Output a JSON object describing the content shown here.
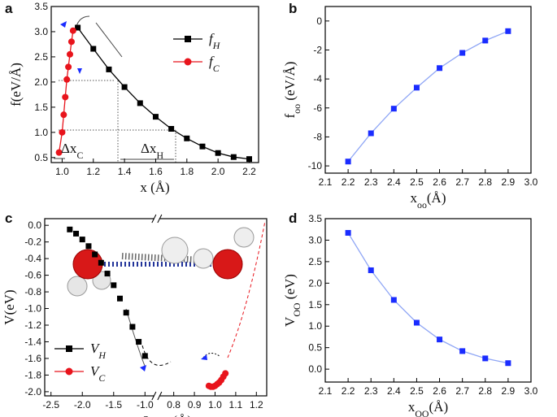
{
  "chart_data": [
    {
      "type": "line",
      "panel_label": "a",
      "xlabel": [
        {
          "text": "x (Å)"
        }
      ],
      "ylabel": [
        {
          "text": "f(eV/Å)"
        }
      ],
      "xlim": [
        0.93,
        2.26
      ],
      "ylim": [
        0.4,
        3.5
      ],
      "xticks": [
        {
          "value": 1.0,
          "label": "1.0"
        },
        1.2,
        1.4,
        1.6,
        1.8,
        {
          "value": 2.0,
          "label": "2.0"
        },
        2.2
      ],
      "yticks": [
        0.5,
        {
          "value": 1.0,
          "label": "1.0"
        },
        1.5,
        {
          "value": 2.0,
          "label": "2.0"
        },
        2.5,
        {
          "value": 3.0,
          "label": "3.0"
        },
        3.5
      ],
      "legend": "upper right",
      "annotations": [
        {
          "text": "Δx",
          "sub": "C"
        },
        {
          "text": "Δx",
          "sub": "H"
        }
      ],
      "series": [
        {
          "name": [
            {
              "text": "f",
              "sub": "H"
            }
          ],
          "color": "#000000",
          "marker": "square",
          "line": true,
          "x": [
            1.1,
            1.2,
            1.3,
            1.4,
            1.5,
            1.6,
            1.7,
            1.8,
            1.9,
            2.0,
            2.1,
            2.2
          ],
          "values": [
            3.08,
            2.66,
            2.25,
            1.9,
            1.58,
            1.31,
            1.07,
            0.88,
            0.72,
            0.59,
            0.51,
            0.47
          ]
        },
        {
          "name": [
            {
              "text": "f",
              "sub": "C"
            }
          ],
          "color": "#e8141c",
          "marker": "circle",
          "line": true,
          "x": [
            0.98,
            1.0,
            1.01,
            1.02,
            1.03,
            1.04,
            1.05,
            1.06,
            1.07
          ],
          "values": [
            0.6,
            1.0,
            1.35,
            1.7,
            2.05,
            2.3,
            2.55,
            2.8,
            3.02
          ]
        }
      ]
    },
    {
      "type": "line",
      "panel_label": "b",
      "xlabel": [
        {
          "text": "x",
          "sub": "oo"
        },
        {
          "text": "(Å)"
        }
      ],
      "ylabel": [
        {
          "text": "f",
          "sub": "oo"
        },
        {
          "text": " (eV/Å)"
        }
      ],
      "xlim": [
        2.1,
        3.0
      ],
      "ylim": [
        -10.5,
        1.0
      ],
      "xticks": [
        2.1,
        2.2,
        2.3,
        2.4,
        2.5,
        2.6,
        2.7,
        2.8,
        2.9,
        {
          "value": 3.0,
          "label": "3.0"
        }
      ],
      "yticks": [
        0,
        -2,
        -4,
        -6,
        -8,
        -10
      ],
      "series": [
        {
          "color": "#1a2cff",
          "line_color": "#8fa6f5",
          "marker": "square",
          "line": true,
          "x": [
            2.2,
            2.3,
            2.4,
            2.5,
            2.6,
            2.7,
            2.8,
            2.9
          ],
          "values": [
            -9.7,
            -7.75,
            -6.05,
            -4.6,
            -3.25,
            -2.2,
            -1.35,
            -0.7
          ]
        }
      ]
    },
    {
      "type": "line",
      "panel_label": "c",
      "xlabel": [
        {
          "text": "-x",
          "sub": "H"
        },
        {
          "text": " & x",
          "sub": "C"
        },
        {
          "text": " (Å)"
        }
      ],
      "ylabel": [
        {
          "text": "V(eV)"
        }
      ],
      "xlim": [
        -2.6,
        1.25
      ],
      "axis_break": [
        -0.85,
        0.73
      ],
      "ylim": [
        -2.05,
        0.08
      ],
      "xticks": [
        -2.5,
        {
          "value": -2.0,
          "label": "-2.0"
        },
        -1.5,
        {
          "value": -1.0,
          "label": "-1.0"
        },
        0.8,
        0.9,
        {
          "value": 1.0,
          "label": "1.0"
        },
        1.1,
        1.2
      ],
      "yticks": [
        {
          "value": 0,
          "label": "0.0"
        },
        -0.2,
        -0.4,
        -0.6,
        -0.8,
        {
          "value": -1.0,
          "label": "-1.0"
        },
        -1.2,
        -1.4,
        -1.6,
        -1.8,
        {
          "value": -2.0,
          "label": "-2.0"
        }
      ],
      "legend": "lower left",
      "series": [
        {
          "name": [
            {
              "text": "V",
              "sub": "H"
            }
          ],
          "color": "#000000",
          "marker": "square",
          "line": false,
          "x": [
            -2.2,
            -2.1,
            -2.0,
            -1.9,
            -1.8,
            -1.7,
            -1.6,
            -1.5,
            -1.4,
            -1.3,
            -1.2,
            -1.1,
            -1.0
          ],
          "values": [
            -0.05,
            -0.1,
            -0.17,
            -0.25,
            -0.35,
            -0.45,
            -0.58,
            -0.72,
            -0.88,
            -1.05,
            -1.22,
            -1.4,
            -1.57
          ]
        },
        {
          "name": [
            {
              "text": "V",
              "sub": "C"
            }
          ],
          "color": "#e8141c",
          "marker": "circle",
          "line": false,
          "x": [
            0.97,
            0.98,
            0.99,
            1.0,
            1.01,
            1.02,
            1.03,
            1.04,
            1.05
          ],
          "values": [
            -1.93,
            -1.94,
            -1.94,
            -1.93,
            -1.91,
            -1.89,
            -1.86,
            -1.82,
            -1.78
          ]
        }
      ]
    },
    {
      "type": "line",
      "panel_label": "d",
      "xlabel": [
        {
          "text": "x",
          "sub": "OO"
        },
        {
          "text": "(Å)"
        }
      ],
      "ylabel": [
        {
          "text": "V",
          "sub": "OO"
        },
        {
          "text": " (eV)"
        }
      ],
      "xlim": [
        2.1,
        3.0
      ],
      "ylim": [
        -0.3,
        3.5
      ],
      "xticks": [
        2.1,
        2.2,
        2.3,
        2.4,
        2.5,
        2.6,
        2.7,
        2.8,
        2.9,
        {
          "value": 3.0,
          "label": "3.0"
        }
      ],
      "yticks": [
        {
          "value": 0,
          "label": "0.0"
        },
        0.5,
        {
          "value": 1.0,
          "label": "1.0"
        },
        1.5,
        {
          "value": 2.0,
          "label": "2.0"
        },
        2.5,
        {
          "value": 3.0,
          "label": "3.0"
        },
        3.5
      ],
      "series": [
        {
          "color": "#1a2cff",
          "line_color": "#8fa6f5",
          "marker": "square",
          "line": true,
          "x": [
            2.2,
            2.3,
            2.4,
            2.5,
            2.6,
            2.7,
            2.8,
            2.9
          ],
          "values": [
            3.17,
            2.3,
            1.61,
            1.08,
            0.69,
            0.42,
            0.25,
            0.14
          ]
        }
      ]
    }
  ]
}
